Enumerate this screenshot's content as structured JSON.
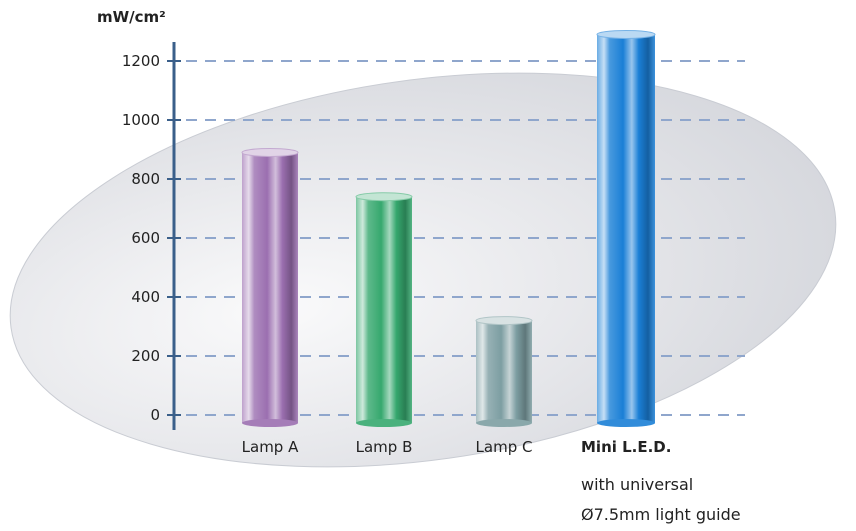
{
  "chart_data": {
    "type": "bar",
    "ylabel": "mW/cm²",
    "ylim": [
      0,
      1300
    ],
    "yticks": [
      0,
      200,
      400,
      600,
      800,
      1000,
      1200
    ],
    "grid": true,
    "categories": [
      "Lamp A",
      "Lamp B",
      "Lamp C",
      "Mini L.E.D."
    ],
    "values": [
      890,
      740,
      320,
      1290
    ],
    "category_subtitle": "with universal\nØ7.5mm light guide",
    "colors": {
      "bars": [
        "#9b6fb0",
        "#36a86e",
        "#7d9ea2",
        "#1a7fd6"
      ],
      "axis": "#3a5f8a",
      "grid": "#8fa6cc",
      "ellipse": "#e3e4e8"
    }
  }
}
